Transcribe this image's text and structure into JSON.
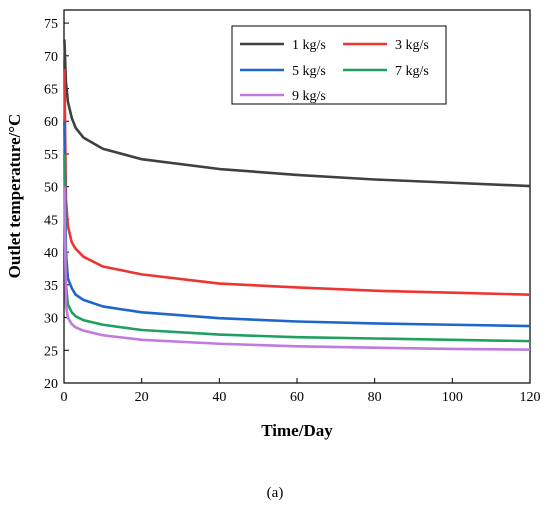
{
  "chart_data": {
    "type": "line",
    "xlabel": "Time/Day",
    "ylabel": "Outlet temperature/°C",
    "xlim": [
      0,
      120
    ],
    "ylim": [
      20,
      77
    ],
    "xticks": [
      0,
      20,
      40,
      60,
      80,
      100,
      120
    ],
    "yticks": [
      20,
      25,
      30,
      35,
      40,
      45,
      50,
      55,
      60,
      65,
      70,
      75
    ],
    "grid": false,
    "legend_position": "top-right",
    "caption": "(a)",
    "x": [
      0.1,
      0.5,
      1,
      2,
      3,
      5,
      10,
      20,
      40,
      60,
      80,
      100,
      120
    ],
    "series": [
      {
        "name": "1 kg/s",
        "color": "#404040",
        "values": [
          72.5,
          66,
          63,
          60.5,
          59,
          57.5,
          55.8,
          54.2,
          52.7,
          51.8,
          51.1,
          50.6,
          50.1
        ]
      },
      {
        "name": "3 kg/s",
        "color": "#ee3333",
        "values": [
          68,
          48,
          44,
          41.5,
          40.5,
          39.3,
          37.8,
          36.6,
          35.2,
          34.6,
          34.1,
          33.8,
          33.5
        ]
      },
      {
        "name": "5 kg/s",
        "color": "#1f66cc",
        "values": [
          60,
          40,
          36,
          34.5,
          33.5,
          32.7,
          31.7,
          30.8,
          29.9,
          29.4,
          29.1,
          28.9,
          28.7
        ]
      },
      {
        "name": "7 kg/s",
        "color": "#20a060",
        "values": [
          55,
          35,
          32,
          30.8,
          30.2,
          29.6,
          28.9,
          28.1,
          27.4,
          27.0,
          26.8,
          26.6,
          26.4
        ]
      },
      {
        "name": "9 kg/s",
        "color": "#c07ae0",
        "values": [
          50,
          32,
          30,
          29,
          28.5,
          28.0,
          27.3,
          26.6,
          26.0,
          25.6,
          25.4,
          25.2,
          25.1
        ]
      }
    ]
  }
}
